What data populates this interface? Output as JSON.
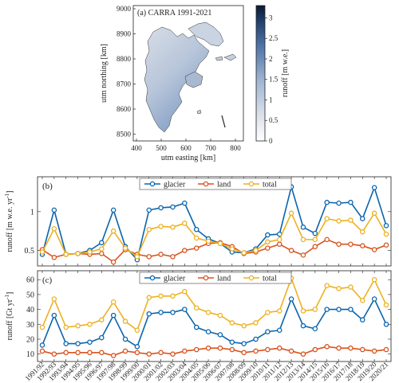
{
  "map_panel": {
    "title": "(a) CARRA 1991-2021",
    "xlabel": "utm easting [km]",
    "ylabel": "utm northing [km]",
    "xticks": [
      "400",
      "500",
      "600",
      "700",
      "800"
    ],
    "yticks": [
      "9000",
      "8900",
      "8800",
      "8700",
      "8600",
      "8500"
    ],
    "colorbar_label": "runoff [m w.e.]",
    "colorbar_ticks": [
      "3",
      "2.5",
      "2",
      "1.5",
      "1",
      "0.5",
      "0"
    ]
  },
  "colors": {
    "glacier": "#0a64ad",
    "land": "#d9531e",
    "total": "#edb120"
  },
  "chart_data": [
    {
      "type": "line",
      "panel_label": "(b)",
      "ylabel": "runoff [m w.e. yr-1]",
      "yticks": [
        "0.5",
        "1"
      ],
      "ylim": [
        0.3,
        1.45
      ],
      "grid": false,
      "legend_position": "top-center",
      "categories": [
        "1991/92",
        "1992/93",
        "1993/94",
        "1994/95",
        "1995/96",
        "1996/97",
        "1997/98",
        "1998/99",
        "1999/00",
        "2000/01",
        "2001/02",
        "2002/03",
        "2003/04",
        "2004/05",
        "2005/06",
        "2006/07",
        "2007/08",
        "2008/09",
        "2009/10",
        "2010/11",
        "2011/12",
        "2012/13",
        "2013/14",
        "2014/15",
        "2015/16",
        "2016/17",
        "2017/18",
        "2018/19",
        "2019/20",
        "2020/21"
      ],
      "series": [
        {
          "name": "glacier",
          "values": [
            0.45,
            1.02,
            0.45,
            0.46,
            0.5,
            0.6,
            1.02,
            0.55,
            0.38,
            1.02,
            1.05,
            1.06,
            1.11,
            0.77,
            0.65,
            0.59,
            0.48,
            0.47,
            0.52,
            0.7,
            0.71,
            1.32,
            0.8,
            0.72,
            1.12,
            1.11,
            1.12,
            0.91,
            1.31,
            0.82
          ]
        },
        {
          "name": "land",
          "values": [
            0.51,
            0.41,
            0.45,
            0.46,
            0.45,
            0.46,
            0.35,
            0.51,
            0.45,
            0.42,
            0.45,
            0.42,
            0.5,
            0.53,
            0.59,
            0.6,
            0.55,
            0.46,
            0.48,
            0.53,
            0.58,
            0.5,
            0.44,
            0.55,
            0.64,
            0.58,
            0.58,
            0.56,
            0.51,
            0.57
          ]
        },
        {
          "name": "total",
          "values": [
            0.48,
            0.78,
            0.45,
            0.46,
            0.48,
            0.52,
            0.75,
            0.53,
            0.42,
            0.77,
            0.81,
            0.8,
            0.85,
            0.66,
            0.62,
            0.59,
            0.52,
            0.47,
            0.5,
            0.61,
            0.64,
            0.98,
            0.64,
            0.64,
            0.91,
            0.88,
            0.89,
            0.74,
            0.98,
            0.71
          ]
        }
      ]
    },
    {
      "type": "line",
      "panel_label": "(c)",
      "ylabel": "runoff [Gt yr-1]",
      "yticks": [
        "10",
        "20",
        "30",
        "40",
        "50",
        "60"
      ],
      "ylim": [
        5,
        66
      ],
      "grid": false,
      "legend_position": "top-center",
      "categories": [
        "1991/92",
        "1992/93",
        "1993/94",
        "1994/95",
        "1995/96",
        "1996/97",
        "1997/98",
        "1998/99",
        "1999/00",
        "2000/01",
        "2001/02",
        "2002/03",
        "2003/04",
        "2004/05",
        "2005/06",
        "2006/07",
        "2007/08",
        "2008/09",
        "2009/10",
        "2010/11",
        "2011/12",
        "2012/13",
        "2013/14",
        "2014/15",
        "2015/16",
        "2016/17",
        "2017/18",
        "2018/19",
        "2019/20",
        "2020/21"
      ],
      "series": [
        {
          "name": "glacier",
          "values": [
            16,
            36,
            17,
            17,
            18,
            21,
            36,
            20,
            15,
            37,
            38,
            38,
            40,
            28,
            25,
            23,
            18,
            17,
            20,
            25,
            26,
            47,
            29,
            27,
            40,
            40,
            40,
            33,
            47,
            30
          ]
        },
        {
          "name": "land",
          "values": [
            12,
            10,
            11,
            11,
            11,
            11,
            9,
            12,
            11,
            10,
            11,
            10,
            12,
            13,
            14,
            14,
            13,
            11,
            12,
            13,
            14,
            12,
            10,
            13,
            15,
            14,
            14,
            13,
            12,
            13
          ]
        },
        {
          "name": "total",
          "values": [
            28,
            47,
            28,
            29,
            30,
            33,
            45,
            32,
            26,
            48,
            49,
            49,
            52,
            41,
            38,
            36,
            31,
            29,
            31,
            38,
            39,
            61,
            39,
            40,
            56,
            54,
            55,
            46,
            60,
            43
          ]
        }
      ]
    }
  ]
}
